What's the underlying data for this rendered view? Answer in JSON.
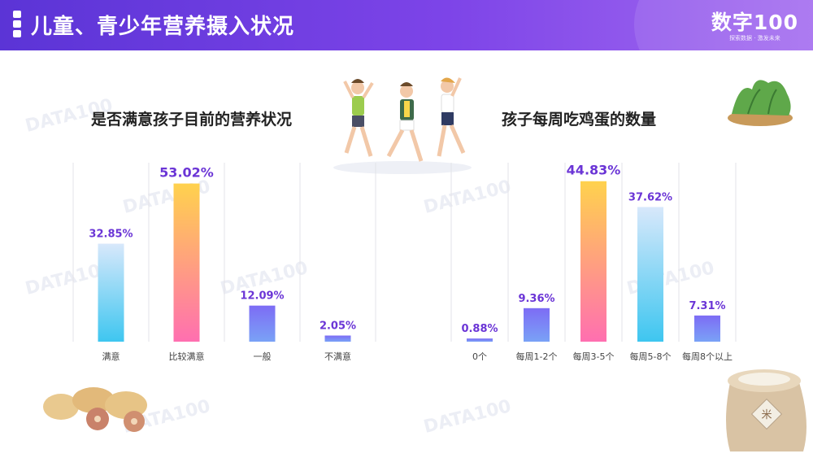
{
  "header": {
    "title": "儿童、青少年营养摄入状况",
    "logo": "数字100",
    "logo_slogan": "探索数据 · 激发未来"
  },
  "watermark": "DATA100",
  "chart_data": [
    {
      "type": "bar",
      "title": "是否满意孩子目前的营养状况",
      "categories": [
        "满意",
        "比较满意",
        "一般",
        "不满意"
      ],
      "values": [
        32.85,
        53.02,
        12.09,
        2.05
      ],
      "labels": [
        "32.85%",
        "53.02%",
        "12.09%",
        "2.05%"
      ],
      "ylim": [
        0,
        60
      ],
      "label_color": "#6b35d6"
    },
    {
      "type": "bar",
      "title": "孩子每周吃鸡蛋的数量",
      "categories": [
        "0个",
        "每周1-2个",
        "每周3-5个",
        "每周5-8个",
        "每周8个以上"
      ],
      "values": [
        0.88,
        9.36,
        44.83,
        37.62,
        7.31
      ],
      "labels": [
        "0.88%",
        "9.36%",
        "44.83%",
        "37.62%",
        "7.31%"
      ],
      "ylim": [
        0,
        50
      ],
      "label_color": "#6b35d6"
    }
  ],
  "colors": {
    "header_start": "#5b34d6",
    "header_end": "#a46cf0",
    "bar_blue_cyan": [
      "#d8e8fb",
      "#3ec6f0"
    ],
    "bar_orange_pink": [
      "#ffd24d",
      "#ff6fb0"
    ],
    "bar_purple": [
      "#7d6cf5",
      "#7aa2f6"
    ]
  }
}
